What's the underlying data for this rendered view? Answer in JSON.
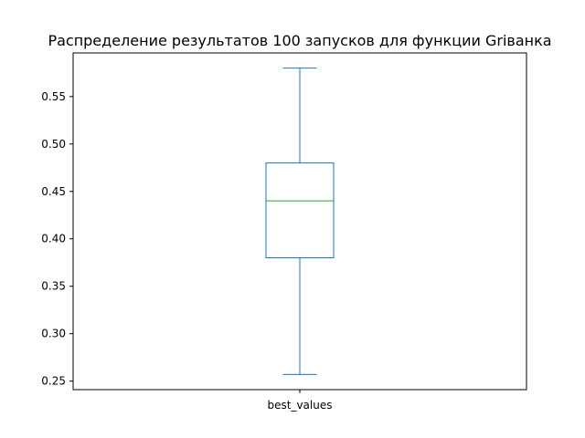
{
  "chart_data": {
    "type": "box",
    "title": "Распределение результатов 100 запусков для функции Griванка",
    "xlabel": "",
    "ylabel": "",
    "categories": [
      "best_values"
    ],
    "boxes": [
      {
        "name": "best_values",
        "whisker_low": 0.257,
        "q1": 0.38,
        "median": 0.44,
        "q3": 0.48,
        "whisker_high": 0.58
      }
    ],
    "ylim": [
      0.241,
      0.596
    ],
    "yticks": [
      0.25,
      0.3,
      0.35,
      0.4,
      0.45,
      0.5,
      0.55
    ],
    "ytick_labels": [
      "0.25",
      "0.30",
      "0.35",
      "0.40",
      "0.45",
      "0.50",
      "0.55"
    ],
    "grid": false,
    "colors": {
      "box": "#1f77b4",
      "median": "#2ca02c",
      "axes": "#000000"
    }
  }
}
